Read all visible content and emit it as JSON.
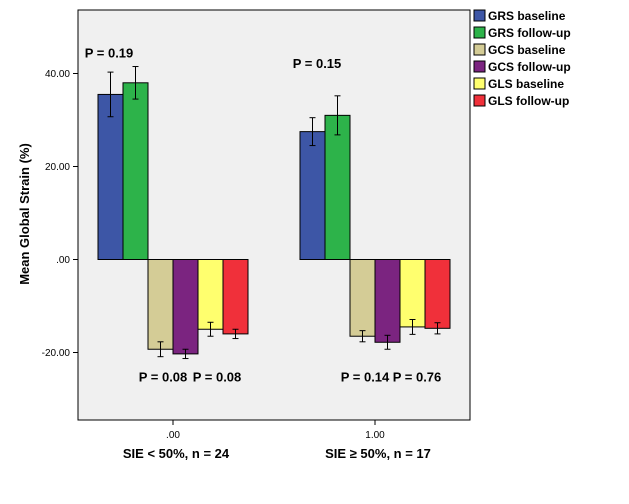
{
  "chart_data": {
    "type": "bar",
    "title": "",
    "xlabel": "",
    "ylabel": "Mean Global Strain (%)",
    "ylim": [
      -33,
      52
    ],
    "yticks": [
      -20,
      0,
      20,
      40
    ],
    "ytick_labels": [
      "-20.00",
      ".00",
      "20.00",
      "40.00"
    ],
    "categories": [
      ".00",
      "1.00"
    ],
    "category_titles": [
      "SIE < 50%, n = 24",
      "SIE ≥ 50%, n = 17"
    ],
    "series": [
      {
        "name": "GRS baseline",
        "color": "#3d56a6",
        "values": [
          35.5,
          27.5
        ],
        "err": [
          4.8,
          3.0
        ]
      },
      {
        "name": "GRS follow-up",
        "color": "#2db34a",
        "values": [
          38.0,
          31.0
        ],
        "err": [
          3.5,
          4.2
        ]
      },
      {
        "name": "GCS baseline",
        "color": "#d4cc96",
        "values": [
          -19.3,
          -16.5
        ],
        "err": [
          1.6,
          1.2
        ]
      },
      {
        "name": "GCS follow-up",
        "color": "#7b2480",
        "values": [
          -20.3,
          -17.8
        ],
        "err": [
          1.0,
          1.5
        ]
      },
      {
        "name": "GLS baseline",
        "color": "#ffff6e",
        "values": [
          -15.0,
          -14.5
        ],
        "err": [
          1.5,
          1.6
        ]
      },
      {
        "name": "GLS follow-up",
        "color": "#f0303a",
        "values": [
          -16.0,
          -14.8
        ],
        "err": [
          1.0,
          1.2
        ]
      }
    ],
    "annotations": [
      {
        "text": "P = 0.19",
        "category": 0,
        "y": 44.5,
        "x_offset": -0.32
      },
      {
        "text": "P = 0.15",
        "category": 1,
        "y": 42.3,
        "x_offset": -0.29
      },
      {
        "text": "P = 0.08",
        "category": 0,
        "y": -25.2,
        "x_offset": -0.05
      },
      {
        "text": "P = 0.08",
        "category": 0,
        "y": -25.2,
        "x_offset": 0.22
      },
      {
        "text": "P = 0.14",
        "category": 1,
        "y": -25.2,
        "x_offset": -0.05
      },
      {
        "text": "P = 0.76",
        "category": 1,
        "y": -25.2,
        "x_offset": 0.21
      }
    ],
    "legend_position": "top-right"
  }
}
